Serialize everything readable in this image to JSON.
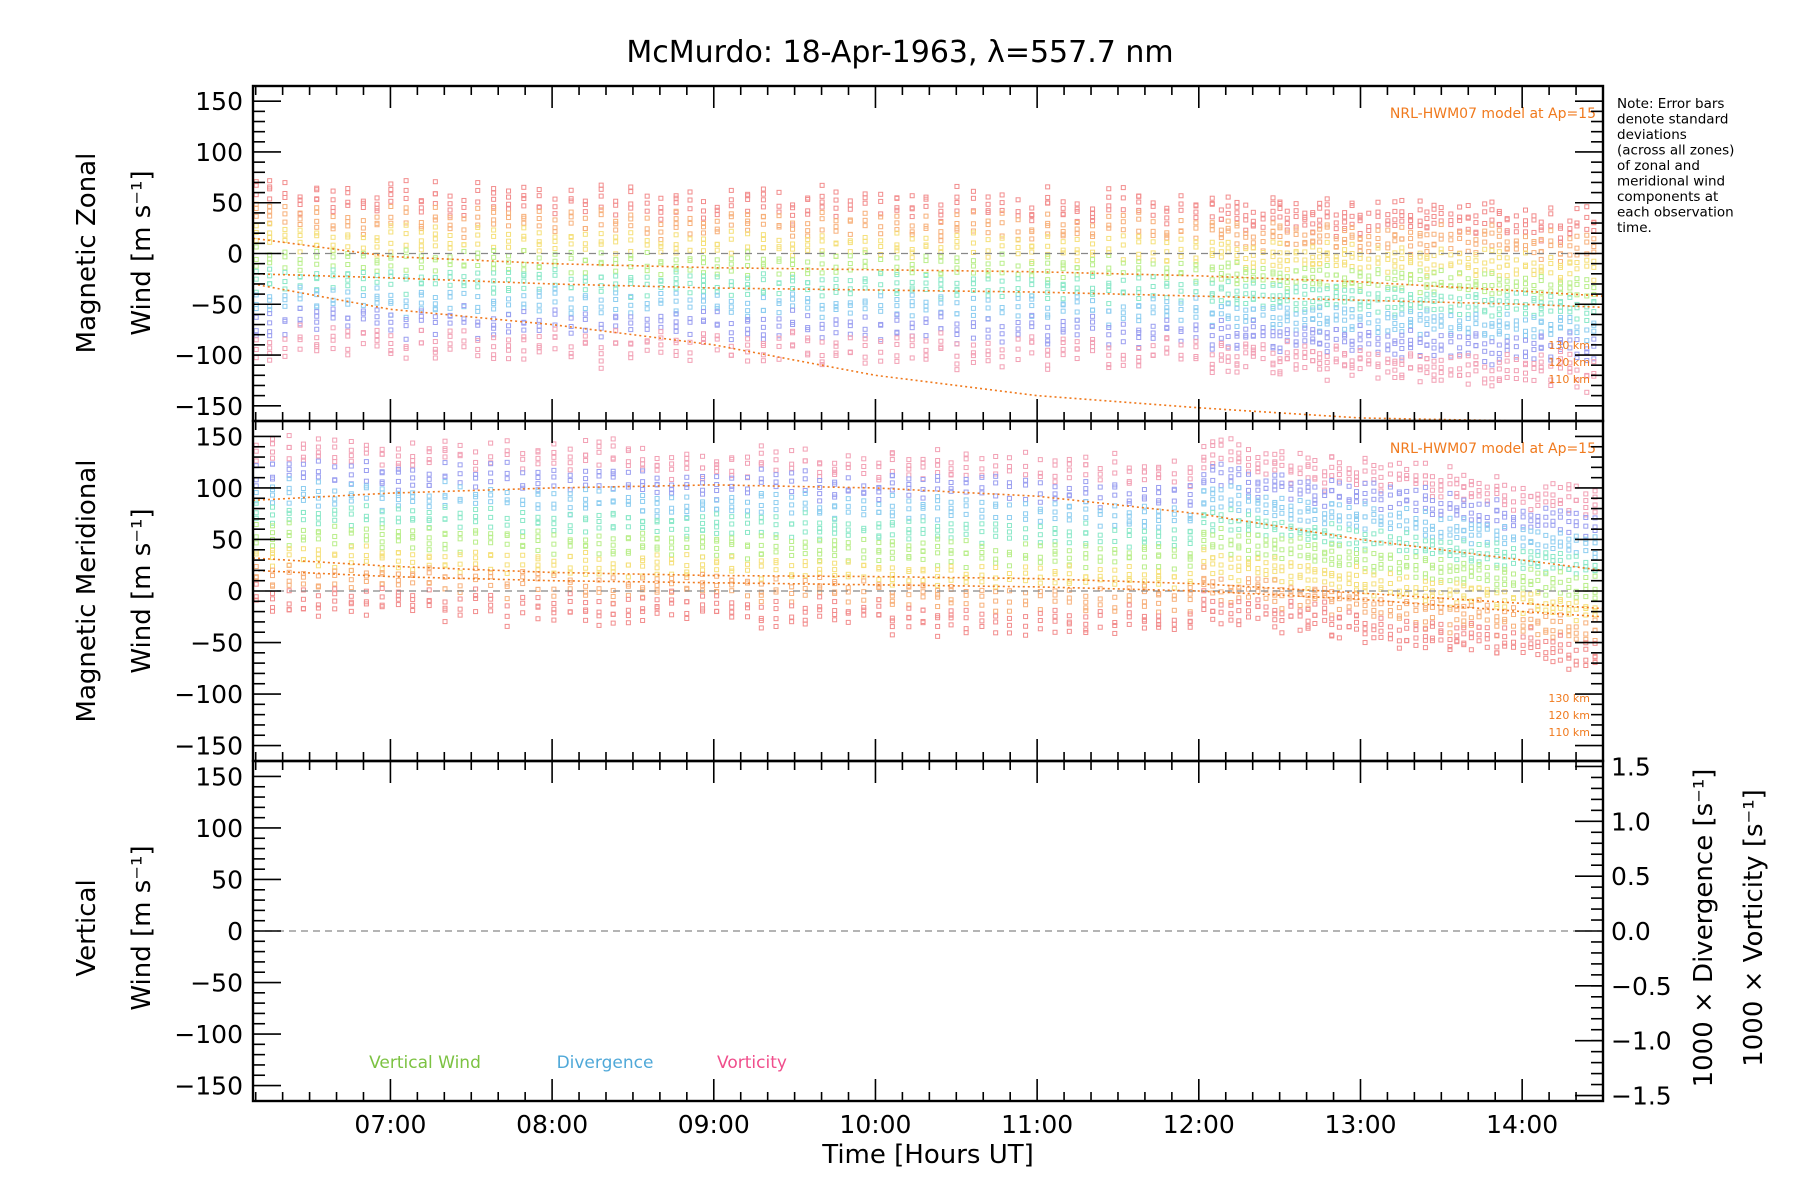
{
  "chart_data": [
    {
      "type": "scatter",
      "panel": "zonal",
      "title": "McMurdo: 18-Apr-1963, λ=557.7 nm",
      "ylabel_line1": "Magnetic Zonal",
      "ylabel_line2": "Wind [m s⁻¹]",
      "ylim": [
        -165,
        165
      ],
      "yticks": [
        150,
        100,
        50,
        0,
        -50,
        -100,
        -150
      ],
      "xlim": [
        6.15,
        14.5
      ],
      "model_label": "NRL-HWM07 model at Ap=15",
      "models": [
        {
          "name": "130 km",
          "x": [
            6.15,
            7,
            8,
            9,
            10,
            11,
            12,
            13,
            14,
            14.5
          ],
          "y": [
            15,
            -3,
            -10,
            -14,
            -16,
            -18,
            -22,
            -28,
            -37,
            -42
          ]
        },
        {
          "name": "120 km",
          "x": [
            6.15,
            7,
            8,
            9,
            10,
            11,
            12,
            13,
            14,
            14.5
          ],
          "y": [
            -20,
            -24,
            -30,
            -34,
            -36,
            -38,
            -42,
            -46,
            -50,
            -53
          ]
        },
        {
          "name": "110 km",
          "x": [
            6.15,
            7,
            8,
            9,
            10,
            11,
            12,
            13,
            14,
            14.5
          ],
          "y": [
            -30,
            -55,
            -70,
            -90,
            -120,
            -140,
            -152,
            -162,
            -168,
            -170
          ]
        }
      ],
      "scatter_note": "Colored error-bar markers across all zones at each observation time"
    },
    {
      "type": "scatter",
      "panel": "meridional",
      "ylabel_line1": "Magnetic Meridional",
      "ylabel_line2": "Wind [m s⁻¹]",
      "ylim": [
        -165,
        165
      ],
      "yticks": [
        150,
        100,
        50,
        0,
        -50,
        -100,
        -150
      ],
      "xlim": [
        6.15,
        14.5
      ],
      "model_label": "NRL-HWM07 model at Ap=15",
      "models": [
        {
          "name": "130 km",
          "x": [
            6.15,
            7,
            8,
            9,
            10,
            11,
            12,
            13,
            14,
            14.5
          ],
          "y": [
            88,
            95,
            100,
            103,
            100,
            92,
            75,
            50,
            30,
            20
          ]
        },
        {
          "name": "120 km",
          "x": [
            6.15,
            7,
            8,
            9,
            10,
            11,
            12,
            13,
            14,
            14.5
          ],
          "y": [
            32,
            24,
            18,
            15,
            14,
            12,
            7,
            -2,
            -12,
            -17
          ]
        },
        {
          "name": "110 km",
          "x": [
            6.15,
            7,
            8,
            9,
            10,
            11,
            12,
            13,
            14,
            14.5
          ],
          "y": [
            20,
            14,
            10,
            8,
            6,
            4,
            0,
            -8,
            -20,
            -25
          ]
        }
      ]
    },
    {
      "type": "line",
      "panel": "vertical",
      "ylabel_line1": "Vertical",
      "ylabel_line2": "Wind [m s⁻¹]",
      "ylim": [
        -165,
        165
      ],
      "yticks": [
        150,
        100,
        50,
        0,
        -50,
        -100,
        -150
      ],
      "right_ylim": [
        -1.55,
        1.55
      ],
      "right_yticks": [
        "1.5",
        "1.0",
        "0.5",
        "0.0",
        "−0.5",
        "−1.0",
        "−1.5"
      ],
      "right_label_div": "1000 × Divergence [s⁻¹]",
      "right_label_vort": "1000 × Vorticity [s⁻¹]",
      "xlabel": "Time [Hours UT]",
      "xticks": [
        "07:00",
        "08:00",
        "09:00",
        "10:00",
        "11:00",
        "12:00",
        "13:00",
        "14:00"
      ],
      "legend": [
        "Vertical Wind",
        "Divergence",
        "Vorticity"
      ]
    }
  ],
  "note": [
    "Note: Error bars",
    "denote standard",
    "deviations",
    "(across all zones)",
    "of zonal and",
    "meridional wind",
    "components at",
    "each observation",
    "time."
  ],
  "colors": {
    "model": "#f07a1e",
    "vertical": "#7cc242",
    "divergence": "#4fa8d8",
    "vorticity": "#f04e8c"
  }
}
